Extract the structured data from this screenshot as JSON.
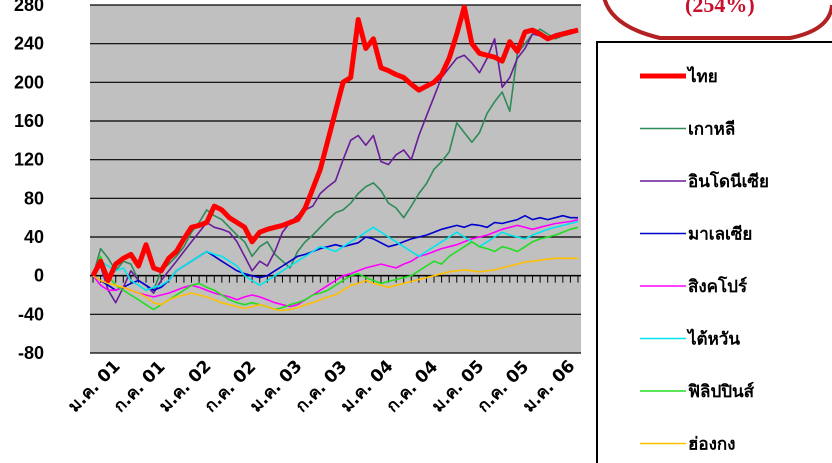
{
  "chart_data": {
    "type": "line",
    "title": "",
    "xlabel": "",
    "ylabel": "",
    "ylim": [
      -80,
      280
    ],
    "yticks": [
      -80,
      -40,
      0,
      40,
      80,
      120,
      160,
      200,
      240,
      280
    ],
    "ytick_labels": [
      "-80",
      "-40",
      "0",
      "40",
      "80",
      "120",
      "160",
      "200",
      "240",
      "280"
    ],
    "grid": "horizontal",
    "legend_position": "right",
    "callout_text": "(254%)",
    "x_count": 65,
    "x_tick_labels": [
      {
        "label": "ม.ค. 01",
        "index": 0
      },
      {
        "label": "ก.ค. 01",
        "index": 6
      },
      {
        "label": "ม.ค. 02",
        "index": 12
      },
      {
        "label": "ก.ค. 02",
        "index": 18
      },
      {
        "label": "ม.ค. 03",
        "index": 24
      },
      {
        "label": "ก.ค. 03",
        "index": 30
      },
      {
        "label": "ม.ค. 04",
        "index": 36
      },
      {
        "label": "ก.ค. 04",
        "index": 42
      },
      {
        "label": "ม.ค. 05",
        "index": 48
      },
      {
        "label": "ก.ค. 05",
        "index": 54
      },
      {
        "label": "ม.ค. 06",
        "index": 60
      }
    ],
    "series": [
      {
        "name": "ไทย",
        "color": "#ff0000",
        "width": 5,
        "values": [
          0,
          15,
          -5,
          12,
          18,
          22,
          10,
          32,
          8,
          5,
          18,
          25,
          38,
          50,
          52,
          55,
          72,
          68,
          60,
          55,
          50,
          35,
          45,
          48,
          50,
          52,
          55,
          58,
          70,
          90,
          110,
          140,
          170,
          200,
          205,
          265,
          235,
          245,
          215,
          212,
          208,
          205,
          198,
          192,
          196,
          200,
          208,
          225,
          250,
          278,
          240,
          230,
          228,
          226,
          222,
          242,
          232,
          252,
          254,
          250,
          245,
          248,
          250,
          252,
          254
        ]
      },
      {
        "name": "เกาหลี",
        "color": "#2e8b57",
        "width": 1.6,
        "values": [
          0,
          28,
          18,
          5,
          15,
          12,
          -5,
          -10,
          -15,
          5,
          12,
          20,
          30,
          45,
          55,
          68,
          62,
          58,
          50,
          42,
          35,
          20,
          30,
          35,
          22,
          15,
          8,
          25,
          35,
          42,
          50,
          58,
          65,
          68,
          75,
          85,
          92,
          96,
          88,
          75,
          70,
          60,
          72,
          85,
          95,
          110,
          118,
          128,
          158,
          148,
          138,
          148,
          168,
          180,
          190,
          170,
          230,
          240,
          250,
          255,
          250,
          245,
          248,
          250,
          254
        ]
      },
      {
        "name": "อินโดนีเซีย",
        "color": "#6a1b9a",
        "width": 1.6,
        "values": [
          0,
          10,
          -15,
          -28,
          -12,
          5,
          -5,
          -10,
          -18,
          -5,
          5,
          15,
          25,
          35,
          45,
          55,
          50,
          48,
          45,
          35,
          20,
          5,
          15,
          10,
          25,
          45,
          55,
          62,
          68,
          72,
          85,
          92,
          98,
          120,
          140,
          145,
          135,
          145,
          118,
          115,
          125,
          130,
          120,
          145,
          165,
          185,
          205,
          215,
          225,
          228,
          220,
          210,
          225,
          245,
          195,
          205,
          225,
          235,
          250,
          248,
          245,
          250,
          252,
          254,
          255
        ]
      },
      {
        "name": "มาเลเซีย",
        "color": "#0000cd",
        "width": 1.6,
        "values": [
          0,
          -5,
          -10,
          -15,
          -12,
          -8,
          -5,
          -10,
          -15,
          -12,
          -5,
          5,
          10,
          15,
          20,
          25,
          20,
          15,
          10,
          5,
          2,
          0,
          -2,
          0,
          5,
          10,
          15,
          20,
          22,
          25,
          28,
          30,
          32,
          30,
          32,
          34,
          40,
          38,
          34,
          30,
          32,
          35,
          38,
          40,
          42,
          45,
          48,
          50,
          52,
          50,
          53,
          52,
          50,
          55,
          54,
          56,
          58,
          62,
          58,
          60,
          58,
          60,
          62,
          60,
          60
        ]
      },
      {
        "name": "สิงคโปร์",
        "color": "#ff00ff",
        "width": 1.6,
        "values": [
          0,
          -10,
          -15,
          -15,
          -12,
          -15,
          -18,
          -20,
          -22,
          -20,
          -18,
          -15,
          -12,
          -10,
          -12,
          -15,
          -18,
          -20,
          -22,
          -25,
          -22,
          -20,
          -22,
          -25,
          -28,
          -30,
          -32,
          -30,
          -25,
          -20,
          -15,
          -10,
          -5,
          0,
          2,
          5,
          8,
          10,
          12,
          10,
          8,
          12,
          15,
          20,
          22,
          25,
          28,
          30,
          32,
          35,
          38,
          40,
          42,
          45,
          48,
          50,
          52,
          50,
          48,
          50,
          52,
          54,
          55,
          56,
          58
        ]
      },
      {
        "name": "ไต้หวัน",
        "color": "#00e5ee",
        "width": 1.6,
        "values": [
          0,
          15,
          10,
          5,
          8,
          -5,
          -10,
          -15,
          -12,
          -10,
          -5,
          5,
          10,
          15,
          20,
          25,
          22,
          20,
          15,
          10,
          0,
          -5,
          -10,
          -5,
          0,
          5,
          10,
          15,
          20,
          25,
          30,
          28,
          25,
          30,
          35,
          40,
          45,
          50,
          45,
          40,
          35,
          30,
          25,
          20,
          25,
          30,
          35,
          40,
          45,
          40,
          35,
          30,
          35,
          40,
          45,
          42,
          40,
          38,
          42,
          45,
          48,
          50,
          52,
          54,
          56
        ]
      },
      {
        "name": "ฟิลิปปินส์",
        "color": "#22dd22",
        "width": 1.6,
        "values": [
          0,
          20,
          0,
          -10,
          -15,
          -20,
          -25,
          -30,
          -35,
          -30,
          -25,
          -20,
          -15,
          -10,
          -8,
          -12,
          -15,
          -20,
          -25,
          -28,
          -30,
          -28,
          -30,
          -32,
          -35,
          -33,
          -30,
          -28,
          -25,
          -20,
          -18,
          -15,
          -10,
          -5,
          0,
          2,
          -2,
          -5,
          -8,
          -6,
          -4,
          -2,
          0,
          5,
          10,
          15,
          12,
          20,
          25,
          30,
          35,
          30,
          28,
          25,
          30,
          28,
          25,
          30,
          35,
          38,
          40,
          42,
          45,
          48,
          50
        ]
      },
      {
        "name": "ฮ่องกง",
        "color": "#ffc000",
        "width": 1.6,
        "values": [
          0,
          -5,
          -8,
          -10,
          -12,
          -15,
          -18,
          -22,
          -28,
          -30,
          -25,
          -22,
          -20,
          -18,
          -20,
          -22,
          -25,
          -28,
          -30,
          -32,
          -34,
          -32,
          -30,
          -32,
          -35,
          -36,
          -35,
          -33,
          -30,
          -28,
          -25,
          -22,
          -20,
          -15,
          -10,
          -8,
          -5,
          -8,
          -10,
          -12,
          -10,
          -8,
          -6,
          -4,
          -2,
          0,
          2,
          4,
          5,
          6,
          5,
          4,
          5,
          6,
          8,
          10,
          12,
          14,
          15,
          16,
          17,
          18,
          18,
          18,
          18
        ]
      }
    ]
  }
}
